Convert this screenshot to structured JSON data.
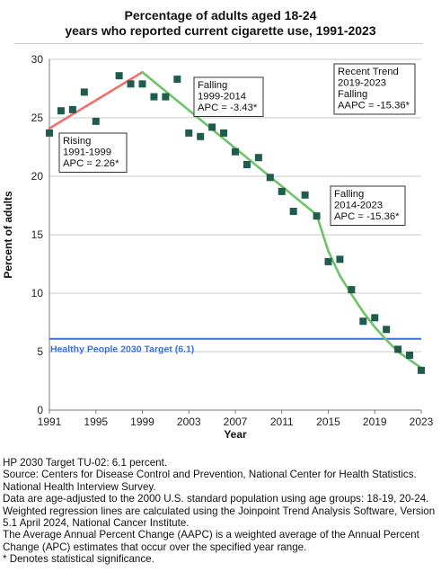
{
  "title_line1": "Percentage of adults aged 18-24",
  "title_line2": "years who reported current cigarette use, 1991-2023",
  "chart_data": {
    "type": "scatter",
    "xlabel": "Year",
    "ylabel": "Percent of adults",
    "xlim": [
      1991,
      2023
    ],
    "ylim": [
      0,
      30
    ],
    "x_ticks": [
      1991,
      1995,
      1999,
      2003,
      2007,
      2011,
      2015,
      2019,
      2023
    ],
    "y_ticks": [
      0,
      5,
      10,
      15,
      20,
      25,
      30
    ],
    "grid": "horizontal",
    "points": [
      [
        1991,
        23.7
      ],
      [
        1992,
        25.6
      ],
      [
        1993,
        25.7
      ],
      [
        1994,
        27.2
      ],
      [
        1995,
        24.7
      ],
      [
        1997,
        28.6
      ],
      [
        1998,
        27.9
      ],
      [
        1999,
        27.9
      ],
      [
        2000,
        26.8
      ],
      [
        2001,
        26.8
      ],
      [
        2002,
        28.3
      ],
      [
        2003,
        23.7
      ],
      [
        2004,
        23.4
      ],
      [
        2005,
        24.2
      ],
      [
        2006,
        23.7
      ],
      [
        2007,
        22.1
      ],
      [
        2008,
        21.0
      ],
      [
        2009,
        21.6
      ],
      [
        2010,
        19.9
      ],
      [
        2011,
        18.7
      ],
      [
        2012,
        17.0
      ],
      [
        2013,
        18.4
      ],
      [
        2014,
        16.6
      ],
      [
        2015,
        12.7
      ],
      [
        2016,
        12.9
      ],
      [
        2017,
        10.3
      ],
      [
        2018,
        7.6
      ],
      [
        2019,
        7.9
      ],
      [
        2020,
        6.9
      ],
      [
        2021,
        5.2
      ],
      [
        2022,
        4.7
      ],
      [
        2023,
        3.4
      ]
    ],
    "trend_segments": [
      {
        "label": "Rising",
        "period": "1991-1999",
        "apc": "APC =  2.26*",
        "color": "#f0706a",
        "points": [
          [
            1991,
            24.1
          ],
          [
            1999,
            28.9
          ]
        ]
      },
      {
        "label": "Falling",
        "period": "1999-2014",
        "apc": "APC = -3.43*",
        "color": "#6cc466",
        "points": [
          [
            1999,
            28.9
          ],
          [
            2014,
            16.7
          ]
        ]
      },
      {
        "label": "Falling",
        "period": "2014-2023",
        "apc": "APC = -15.36*",
        "color": "#6cc466",
        "points": [
          [
            2014,
            16.7
          ],
          [
            2015,
            13.6
          ],
          [
            2016,
            11.5
          ],
          [
            2017,
            9.9
          ],
          [
            2018,
            8.4
          ],
          [
            2019,
            7.1
          ],
          [
            2020,
            6.0
          ],
          [
            2021,
            5.0
          ],
          [
            2022,
            4.3
          ],
          [
            2023,
            3.6
          ]
        ]
      }
    ],
    "reference_line": {
      "value": 6.1,
      "label": "Healthy People 2030 Target (6.1)",
      "color": "#3a6fd8"
    },
    "recent_trend": {
      "title": "Recent Trend",
      "period": "2019-2023",
      "direction": "Falling",
      "aapc": "AAPC = -15.36*"
    },
    "point_color": "#1f5c4d"
  },
  "notes": [
    "HP 2030 Target TU-02: 6.1 percent.",
    "Source: Centers for Disease Control and Prevention, National Center for Health Statistics. National Health Interview Survey.",
    "Data are age-adjusted to the 2000 U.S. standard population using age groups: 18-19, 20-24.",
    "Weighted regression lines are calculated using the Joinpoint Trend Analysis Software, Version 5.1 April 2024, National Cancer Institute.",
    "The Average Annual Percent Change (AAPC) is a weighted average of the Annual Percent Change (APC) estimates that occur over the specified year range.",
    "* Denotes statistical significance."
  ]
}
